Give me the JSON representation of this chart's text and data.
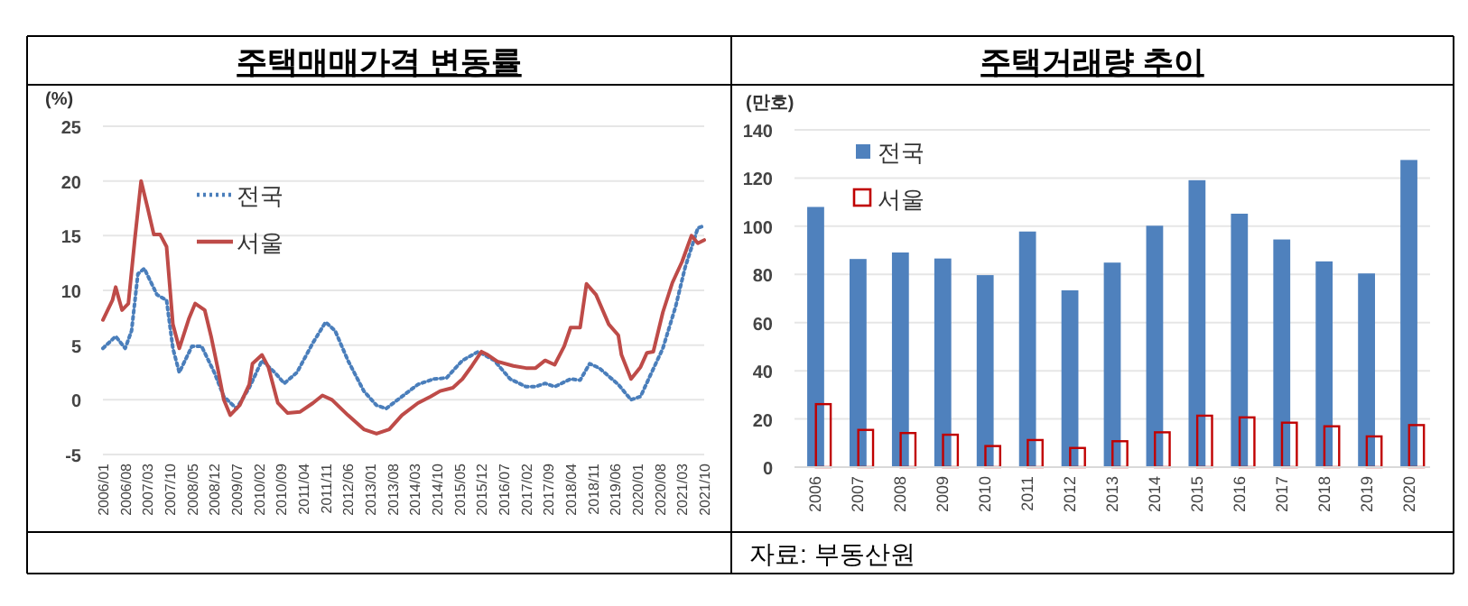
{
  "chart_data": [
    {
      "type": "line",
      "title": "주택매매가격 변동률",
      "ylabel": "(%)",
      "legend": "top left",
      "grid": "y",
      "ylim": [
        -5,
        25
      ],
      "yticks": [
        -5,
        0,
        5,
        10,
        15,
        20,
        25
      ],
      "xlim": [
        "2006-01",
        "2021-10"
      ],
      "xticks": [
        {
          "value": "2006-01",
          "label": "2006/01"
        },
        {
          "value": "2006-08",
          "label": "2006/08"
        },
        {
          "value": "2007-03",
          "label": "2007/03"
        },
        {
          "value": "2007-10",
          "label": "2007/10"
        },
        {
          "value": "2008-05",
          "label": "2008/05"
        },
        {
          "value": "2008-12",
          "label": "2008/12"
        },
        {
          "value": "2009-07",
          "label": "2009/07"
        },
        {
          "value": "2010-02",
          "label": "2010/02"
        },
        {
          "value": "2010-09",
          "label": "2010/09"
        },
        {
          "value": "2011-04",
          "label": "2011/04"
        },
        {
          "value": "2011-11",
          "label": "2011/11"
        },
        {
          "value": "2012-06",
          "label": "2012/06"
        },
        {
          "value": "2013-01",
          "label": "2013/01"
        },
        {
          "value": "2013-08",
          "label": "2013/08"
        },
        {
          "value": "2014-03",
          "label": "2014/03"
        },
        {
          "value": "2014-10",
          "label": "2014/10"
        },
        {
          "value": "2015-05",
          "label": "2015/05"
        },
        {
          "value": "2015-12",
          "label": "2015/12"
        },
        {
          "value": "2016-07",
          "label": "2016/07"
        },
        {
          "value": "2017-02",
          "label": "2017/02"
        },
        {
          "value": "2017-09",
          "label": "2017/09"
        },
        {
          "value": "2018-04",
          "label": "2018/04"
        },
        {
          "value": "2018-11",
          "label": "2018/11"
        },
        {
          "value": "2019-06",
          "label": "2019/06"
        },
        {
          "value": "2020-01",
          "label": "2020/01"
        },
        {
          "value": "2020-08",
          "label": "2020/08"
        },
        {
          "value": "2021-03",
          "label": "2021/03"
        },
        {
          "value": "2021-10",
          "label": "2021/10"
        }
      ],
      "series": [
        {
          "name": "전국",
          "color": "#4a7ebb",
          "line_style": "dotted",
          "x": [
            "2006-01",
            "2006-05",
            "2006-08",
            "2006-10",
            "2006-12",
            "2007-02",
            "2007-06",
            "2007-09",
            "2007-11",
            "2008-01",
            "2008-05",
            "2008-08",
            "2008-12",
            "2009-03",
            "2009-07",
            "2009-11",
            "2010-03",
            "2010-07",
            "2010-10",
            "2011-02",
            "2011-07",
            "2011-11",
            "2012-02",
            "2012-06",
            "2012-11",
            "2013-03",
            "2013-06",
            "2013-11",
            "2014-04",
            "2014-09",
            "2015-01",
            "2015-06",
            "2015-11",
            "2016-04",
            "2016-09",
            "2017-02",
            "2017-05",
            "2017-08",
            "2017-11",
            "2018-04",
            "2018-07",
            "2018-10",
            "2019-01",
            "2019-07",
            "2019-11",
            "2020-02",
            "2020-05",
            "2020-09",
            "2021-01",
            "2021-04",
            "2021-08",
            "2021-10"
          ],
          "values": [
            4.7,
            5.8,
            4.7,
            6.3,
            11.5,
            12,
            9.6,
            9.1,
            4.7,
            2.5,
            4.9,
            4.9,
            2.5,
            0.3,
            -0.8,
            1.1,
            3.6,
            2.5,
            1.5,
            2.5,
            5.2,
            7.1,
            6.3,
            3.6,
            0.8,
            -0.5,
            -0.8,
            0.3,
            1.4,
            1.9,
            2,
            3.6,
            4.4,
            3.6,
            1.9,
            1.2,
            1.2,
            1.5,
            1.2,
            1.9,
            1.8,
            3.3,
            2.9,
            1.4,
            0,
            0.3,
            2.2,
            4.7,
            8.5,
            12.1,
            15.7,
            15.9
          ]
        },
        {
          "name": "서울",
          "color": "#be4b48",
          "line_style": "solid",
          "x": [
            "2006-01",
            "2006-04",
            "2006-05",
            "2006-07",
            "2006-09",
            "2006-11",
            "2007-01",
            "2007-03",
            "2007-05",
            "2007-07",
            "2007-09",
            "2007-11",
            "2008-01",
            "2008-04",
            "2008-06",
            "2008-09",
            "2008-11",
            "2009-01",
            "2009-03",
            "2009-05",
            "2009-08",
            "2009-11",
            "2009-12",
            "2010-03",
            "2010-05",
            "2010-08",
            "2010-11",
            "2011-03",
            "2011-07",
            "2011-10",
            "2012-01",
            "2012-06",
            "2012-11",
            "2013-03",
            "2013-07",
            "2013-11",
            "2014-04",
            "2014-08",
            "2014-11",
            "2015-03",
            "2015-06",
            "2015-09",
            "2015-12",
            "2016-02",
            "2016-05",
            "2016-10",
            "2017-02",
            "2017-05",
            "2017-08",
            "2017-11",
            "2018-02",
            "2018-04",
            "2018-07",
            "2018-09",
            "2018-12",
            "2019-04",
            "2019-07",
            "2019-08",
            "2019-11",
            "2020-02",
            "2020-04",
            "2020-06",
            "2020-09",
            "2020-12",
            "2021-03",
            "2021-06",
            "2021-08",
            "2021-10"
          ],
          "values": [
            7.3,
            9.1,
            10.3,
            8.2,
            8.8,
            14.6,
            20,
            17.6,
            15.1,
            15.1,
            14,
            6.9,
            4.7,
            7.4,
            8.8,
            8.2,
            5.8,
            3,
            0,
            -1.4,
            -0.5,
            1.4,
            3.3,
            4.1,
            3,
            -0.3,
            -1.2,
            -1.1,
            -0.3,
            0.4,
            0,
            -1.4,
            -2.7,
            -3.1,
            -2.7,
            -1.4,
            -0.3,
            0.3,
            0.8,
            1.1,
            1.9,
            3.1,
            4.4,
            4.1,
            3.5,
            3.1,
            2.9,
            2.9,
            3.6,
            3.2,
            4.9,
            6.6,
            6.6,
            10.6,
            9.6,
            6.9,
            5.9,
            4.1,
            1.9,
            3,
            4.3,
            4.4,
            8,
            10.7,
            12.6,
            15,
            14.3,
            14.6
          ]
        }
      ]
    },
    {
      "type": "bar",
      "title": "주택거래량 추이",
      "ylabel": "(만호)",
      "legend": "top left",
      "grid": "y",
      "ylim": [
        0,
        140
      ],
      "yticks": [
        0,
        20,
        40,
        60,
        80,
        100,
        120,
        140
      ],
      "categories": [
        "2006",
        "2007",
        "2008",
        "2009",
        "2010",
        "2011",
        "2012",
        "2013",
        "2014",
        "2015",
        "2016",
        "2017",
        "2018",
        "2019",
        "2020"
      ],
      "series": [
        {
          "name": "전국",
          "color": "#4f81bd",
          "values": [
            108,
            86.4,
            89.1,
            86.6,
            79.7,
            97.8,
            73.4,
            84.9,
            100.2,
            119.1,
            105.2,
            94.5,
            85.4,
            80.4,
            127.5
          ]
        },
        {
          "name": "서울",
          "color": "#c00000",
          "values": [
            26.6,
            15.9,
            14.6,
            13.9,
            9.2,
            11.7,
            8.4,
            11.2,
            14.9,
            21.8,
            21.1,
            18.9,
            17.4,
            13.2,
            17.9
          ]
        }
      ],
      "annotations": [
        "자료: 부동산원"
      ]
    }
  ]
}
